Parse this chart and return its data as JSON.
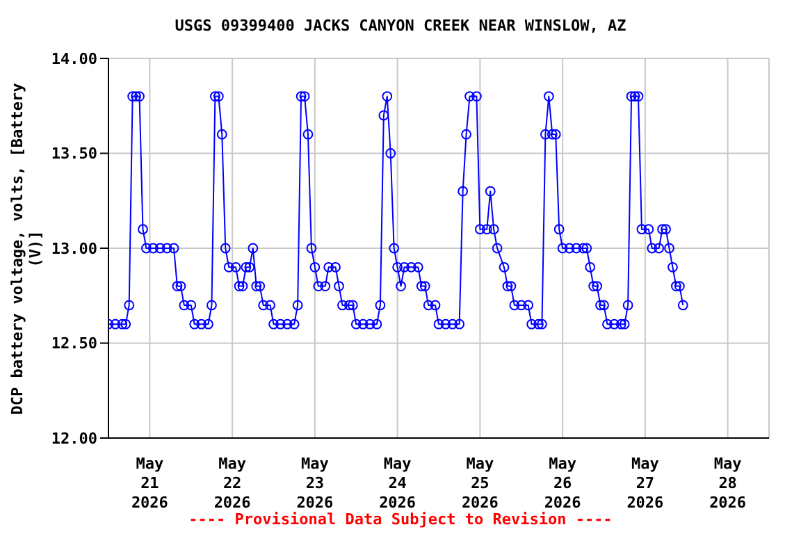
{
  "chart_data": {
    "type": "line",
    "title": "USGS 09399400 JACKS CANYON CREEK NEAR WINSLOW, AZ",
    "ylabel": "DCP battery voltage, volts, [Battery (V)]",
    "annotations": [
      "---- Provisional Data Subject to Revision ----"
    ],
    "x": [
      "2026-05-20T12:00",
      "2026-05-20T14:00",
      "2026-05-20T16:00",
      "2026-05-20T17:00",
      "2026-05-20T18:00",
      "2026-05-20T19:00",
      "2026-05-20T20:00",
      "2026-05-20T21:00",
      "2026-05-20T22:00",
      "2026-05-20T23:00",
      "2026-05-21T01:00",
      "2026-05-21T03:00",
      "2026-05-21T05:00",
      "2026-05-21T07:00",
      "2026-05-21T08:00",
      "2026-05-21T09:00",
      "2026-05-21T10:00",
      "2026-05-21T12:00",
      "2026-05-21T13:00",
      "2026-05-21T15:00",
      "2026-05-21T17:00",
      "2026-05-21T18:00",
      "2026-05-21T19:00",
      "2026-05-21T20:00",
      "2026-05-21T21:00",
      "2026-05-21T22:00",
      "2026-05-21T23:00",
      "2026-05-22T01:00",
      "2026-05-22T02:00",
      "2026-05-22T03:00",
      "2026-05-22T04:00",
      "2026-05-22T05:00",
      "2026-05-22T06:00",
      "2026-05-22T07:00",
      "2026-05-22T08:00",
      "2026-05-22T09:00",
      "2026-05-22T11:00",
      "2026-05-22T12:00",
      "2026-05-22T14:00",
      "2026-05-22T16:00",
      "2026-05-22T18:00",
      "2026-05-22T19:00",
      "2026-05-22T20:00",
      "2026-05-22T21:00",
      "2026-05-22T22:00",
      "2026-05-22T23:00",
      "2026-05-23T00:00",
      "2026-05-23T01:00",
      "2026-05-23T03:00",
      "2026-05-23T04:00",
      "2026-05-23T06:00",
      "2026-05-23T07:00",
      "2026-05-23T08:00",
      "2026-05-23T10:00",
      "2026-05-23T11:00",
      "2026-05-23T12:00",
      "2026-05-23T14:00",
      "2026-05-23T16:00",
      "2026-05-23T18:00",
      "2026-05-23T19:00",
      "2026-05-23T20:00",
      "2026-05-23T21:00",
      "2026-05-23T22:00",
      "2026-05-23T23:00",
      "2026-05-24T00:00",
      "2026-05-24T01:00",
      "2026-05-24T02:00",
      "2026-05-24T04:00",
      "2026-05-24T06:00",
      "2026-05-24T07:00",
      "2026-05-24T08:00",
      "2026-05-24T09:00",
      "2026-05-24T11:00",
      "2026-05-24T12:00",
      "2026-05-24T14:00",
      "2026-05-24T16:00",
      "2026-05-24T18:00",
      "2026-05-24T19:00",
      "2026-05-24T20:00",
      "2026-05-24T21:00",
      "2026-05-24T23:00",
      "2026-05-25T00:00",
      "2026-05-25T02:00",
      "2026-05-25T03:00",
      "2026-05-25T04:00",
      "2026-05-25T05:00",
      "2026-05-25T07:00",
      "2026-05-25T08:00",
      "2026-05-25T09:00",
      "2026-05-25T10:00",
      "2026-05-25T12:00",
      "2026-05-25T14:00",
      "2026-05-25T15:00",
      "2026-05-25T17:00",
      "2026-05-25T18:00",
      "2026-05-25T19:00",
      "2026-05-25T20:00",
      "2026-05-25T21:00",
      "2026-05-25T22:00",
      "2026-05-25T23:00",
      "2026-05-26T00:00",
      "2026-05-26T02:00",
      "2026-05-26T04:00",
      "2026-05-26T06:00",
      "2026-05-26T07:00",
      "2026-05-26T08:00",
      "2026-05-26T09:00",
      "2026-05-26T10:00",
      "2026-05-26T11:00",
      "2026-05-26T12:00",
      "2026-05-26T13:00",
      "2026-05-26T15:00",
      "2026-05-26T17:00",
      "2026-05-26T18:00",
      "2026-05-26T19:00",
      "2026-05-26T20:00",
      "2026-05-26T21:00",
      "2026-05-26T22:00",
      "2026-05-26T23:00",
      "2026-05-27T01:00",
      "2026-05-27T02:00",
      "2026-05-27T04:00",
      "2026-05-27T05:00",
      "2026-05-27T06:00",
      "2026-05-27T07:00",
      "2026-05-27T08:00",
      "2026-05-27T09:00",
      "2026-05-27T10:00",
      "2026-05-27T11:00"
    ],
    "series": [
      {
        "color": "#0000ff",
        "values": [
          12.6,
          12.6,
          12.6,
          12.6,
          12.7,
          13.8,
          13.8,
          13.8,
          13.1,
          13.0,
          13.0,
          13.0,
          13.0,
          13.0,
          12.8,
          12.8,
          12.7,
          12.7,
          12.6,
          12.6,
          12.6,
          12.7,
          13.8,
          13.8,
          13.6,
          13.0,
          12.9,
          12.9,
          12.8,
          12.8,
          12.9,
          12.9,
          13.0,
          12.8,
          12.8,
          12.7,
          12.7,
          12.6,
          12.6,
          12.6,
          12.6,
          12.7,
          13.8,
          13.8,
          13.6,
          13.0,
          12.9,
          12.8,
          12.8,
          12.9,
          12.9,
          12.8,
          12.7,
          12.7,
          12.7,
          12.6,
          12.6,
          12.6,
          12.6,
          12.7,
          13.7,
          13.8,
          13.5,
          13.0,
          12.9,
          12.8,
          12.9,
          12.9,
          12.9,
          12.8,
          12.8,
          12.7,
          12.7,
          12.6,
          12.6,
          12.6,
          12.6,
          13.3,
          13.6,
          13.8,
          13.8,
          13.1,
          13.1,
          13.3,
          13.1,
          13.0,
          12.9,
          12.8,
          12.8,
          12.7,
          12.7,
          12.7,
          12.6,
          12.6,
          12.6,
          13.6,
          13.8,
          13.6,
          13.6,
          13.1,
          13.0,
          13.0,
          13.0,
          13.0,
          13.0,
          12.9,
          12.8,
          12.8,
          12.7,
          12.7,
          12.6,
          12.6,
          12.6,
          12.6,
          12.7,
          13.8,
          13.8,
          13.8,
          13.1,
          13.1,
          13.0,
          13.0,
          13.1,
          13.1,
          13.0,
          12.9,
          12.8,
          12.8,
          12.7
        ]
      }
    ],
    "xlim": [
      "2026-05-20T12:00",
      "2026-05-28T12:00"
    ],
    "xticks": [
      {
        "value": "2026-05-21",
        "label": "May\n21\n2026"
      },
      {
        "value": "2026-05-22",
        "label": "May\n22\n2026"
      },
      {
        "value": "2026-05-23",
        "label": "May\n23\n2026"
      },
      {
        "value": "2026-05-24",
        "label": "May\n24\n2026"
      },
      {
        "value": "2026-05-25",
        "label": "May\n25\n2026"
      },
      {
        "value": "2026-05-26",
        "label": "May\n26\n2026"
      },
      {
        "value": "2026-05-27",
        "label": "May\n27\n2026"
      },
      {
        "value": "2026-05-28",
        "label": "May\n28\n2026"
      }
    ],
    "ylim": [
      12,
      14
    ],
    "yticks": [
      {
        "value": 12,
        "label": "12.00"
      },
      {
        "value": 12.5,
        "label": "12.50"
      },
      {
        "value": 13,
        "label": "13.00"
      },
      {
        "value": 13.5,
        "label": "13.50"
      },
      {
        "value": 14,
        "label": "14.00"
      }
    ],
    "grid": true,
    "marker": "circle",
    "line_style": "solid"
  }
}
